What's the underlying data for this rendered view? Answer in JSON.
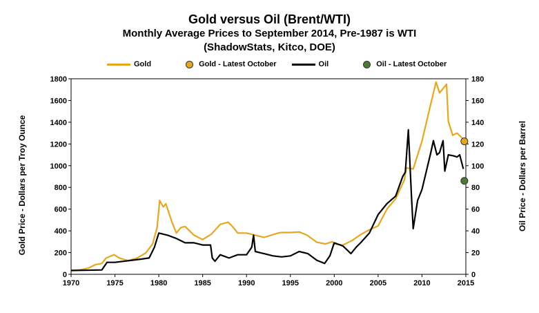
{
  "chart_data": {
    "type": "line",
    "title": "Gold versus Oil (Brent/WTI)",
    "subtitle": "Monthly Average Prices to September 2014, Pre-1987 is WTI",
    "subtitle2": "(ShadowStats, Kitco, DOE)",
    "ylabel_left": "Gold Price - Dollars per Troy Ounce",
    "ylabel_right": "Oil Price - Dollars per Barrel",
    "xlim": [
      1970,
      2015
    ],
    "ylim_left": [
      0,
      1800
    ],
    "ylim_right": [
      0,
      180
    ],
    "x_ticks": [
      1970,
      1975,
      1980,
      1985,
      1990,
      1995,
      2000,
      2005,
      2010,
      2015
    ],
    "y_left_ticks": [
      0,
      200,
      400,
      600,
      800,
      1000,
      1200,
      1400,
      1600,
      1800
    ],
    "y_right_ticks": [
      0,
      20,
      40,
      60,
      80,
      100,
      120,
      140,
      160,
      180
    ],
    "grid": false,
    "legend_position": "top",
    "legend": [
      "Gold",
      "Gold - Latest October",
      "Oil",
      "Oil - Latest October"
    ],
    "colors": {
      "gold": "#E8A61C",
      "oil": "#000000",
      "oil_latest": "#4F7A32"
    },
    "series": [
      {
        "name": "Gold",
        "axis": "left",
        "x": [
          1970,
          1971,
          1972,
          1972.8,
          1973.5,
          1974,
          1974.9,
          1975.5,
          1976.5,
          1977.5,
          1978.5,
          1979.3,
          1979.8,
          1980.1,
          1980.5,
          1980.8,
          1981.5,
          1982,
          1982.5,
          1983,
          1984,
          1985,
          1986,
          1987,
          1987.9,
          1988.5,
          1989,
          1990,
          1991,
          1992,
          1993.6,
          1994,
          1995,
          1996,
          1996.9,
          1997.5,
          1998,
          1999,
          1999.8,
          2000,
          2001,
          2002,
          2003,
          2004,
          2005,
          2006,
          2007,
          2008,
          2008.2,
          2009,
          2010,
          2011,
          2011.6,
          2012,
          2012.8,
          2013,
          2013.5,
          2014,
          2014.75
        ],
        "values": [
          36,
          41,
          58,
          90,
          100,
          150,
          180,
          150,
          125,
          148,
          195,
          280,
          430,
          680,
          620,
          650,
          480,
          380,
          430,
          440,
          360,
          320,
          370,
          460,
          480,
          430,
          380,
          380,
          360,
          340,
          380,
          385,
          385,
          390,
          360,
          325,
          295,
          280,
          300,
          280,
          270,
          310,
          365,
          410,
          445,
          600,
          695,
          870,
          980,
          970,
          1225,
          1570,
          1770,
          1670,
          1750,
          1410,
          1280,
          1300,
          1240
        ]
      },
      {
        "name": "Gold - Latest October",
        "axis": "left",
        "x": [
          2014.83
        ],
        "values": [
          1224
        ]
      },
      {
        "name": "Oil",
        "axis": "right",
        "x": [
          1970,
          1973.5,
          1974.1,
          1975,
          1978,
          1978.9,
          1979.5,
          1980,
          1981,
          1982,
          1983,
          1984,
          1985,
          1985.9,
          1986.1,
          1986.4,
          1987,
          1988,
          1989,
          1990,
          1990.6,
          1990.8,
          1991,
          1992,
          1993,
          1994,
          1995,
          1996,
          1997,
          1998,
          1998.9,
          1999.5,
          2000,
          2001,
          2001.9,
          2002.5,
          2003,
          2004,
          2005,
          2006,
          2007,
          2007.8,
          2008.1,
          2008.45,
          2008.8,
          2009,
          2009.5,
          2010,
          2011,
          2011.3,
          2011.7,
          2012,
          2012.4,
          2012.6,
          2013,
          2013.6,
          2014,
          2014.3,
          2014.72
        ],
        "values": [
          3.5,
          4,
          11,
          11,
          14,
          15,
          25,
          38,
          36,
          33,
          29,
          29,
          27,
          27,
          15,
          12,
          18,
          15,
          18,
          18,
          25,
          36,
          21,
          19,
          17,
          16,
          17,
          21,
          19,
          13,
          10,
          17,
          29,
          26,
          19,
          25,
          29,
          38,
          55,
          65,
          72,
          90,
          94,
          133,
          72,
          42,
          68,
          78,
          112,
          123,
          110,
          112,
          123,
          95,
          110,
          109,
          108,
          110,
          97
        ]
      },
      {
        "name": "Oil - Latest October",
        "axis": "right",
        "x": [
          2014.83
        ],
        "values": [
          86
        ]
      }
    ]
  }
}
